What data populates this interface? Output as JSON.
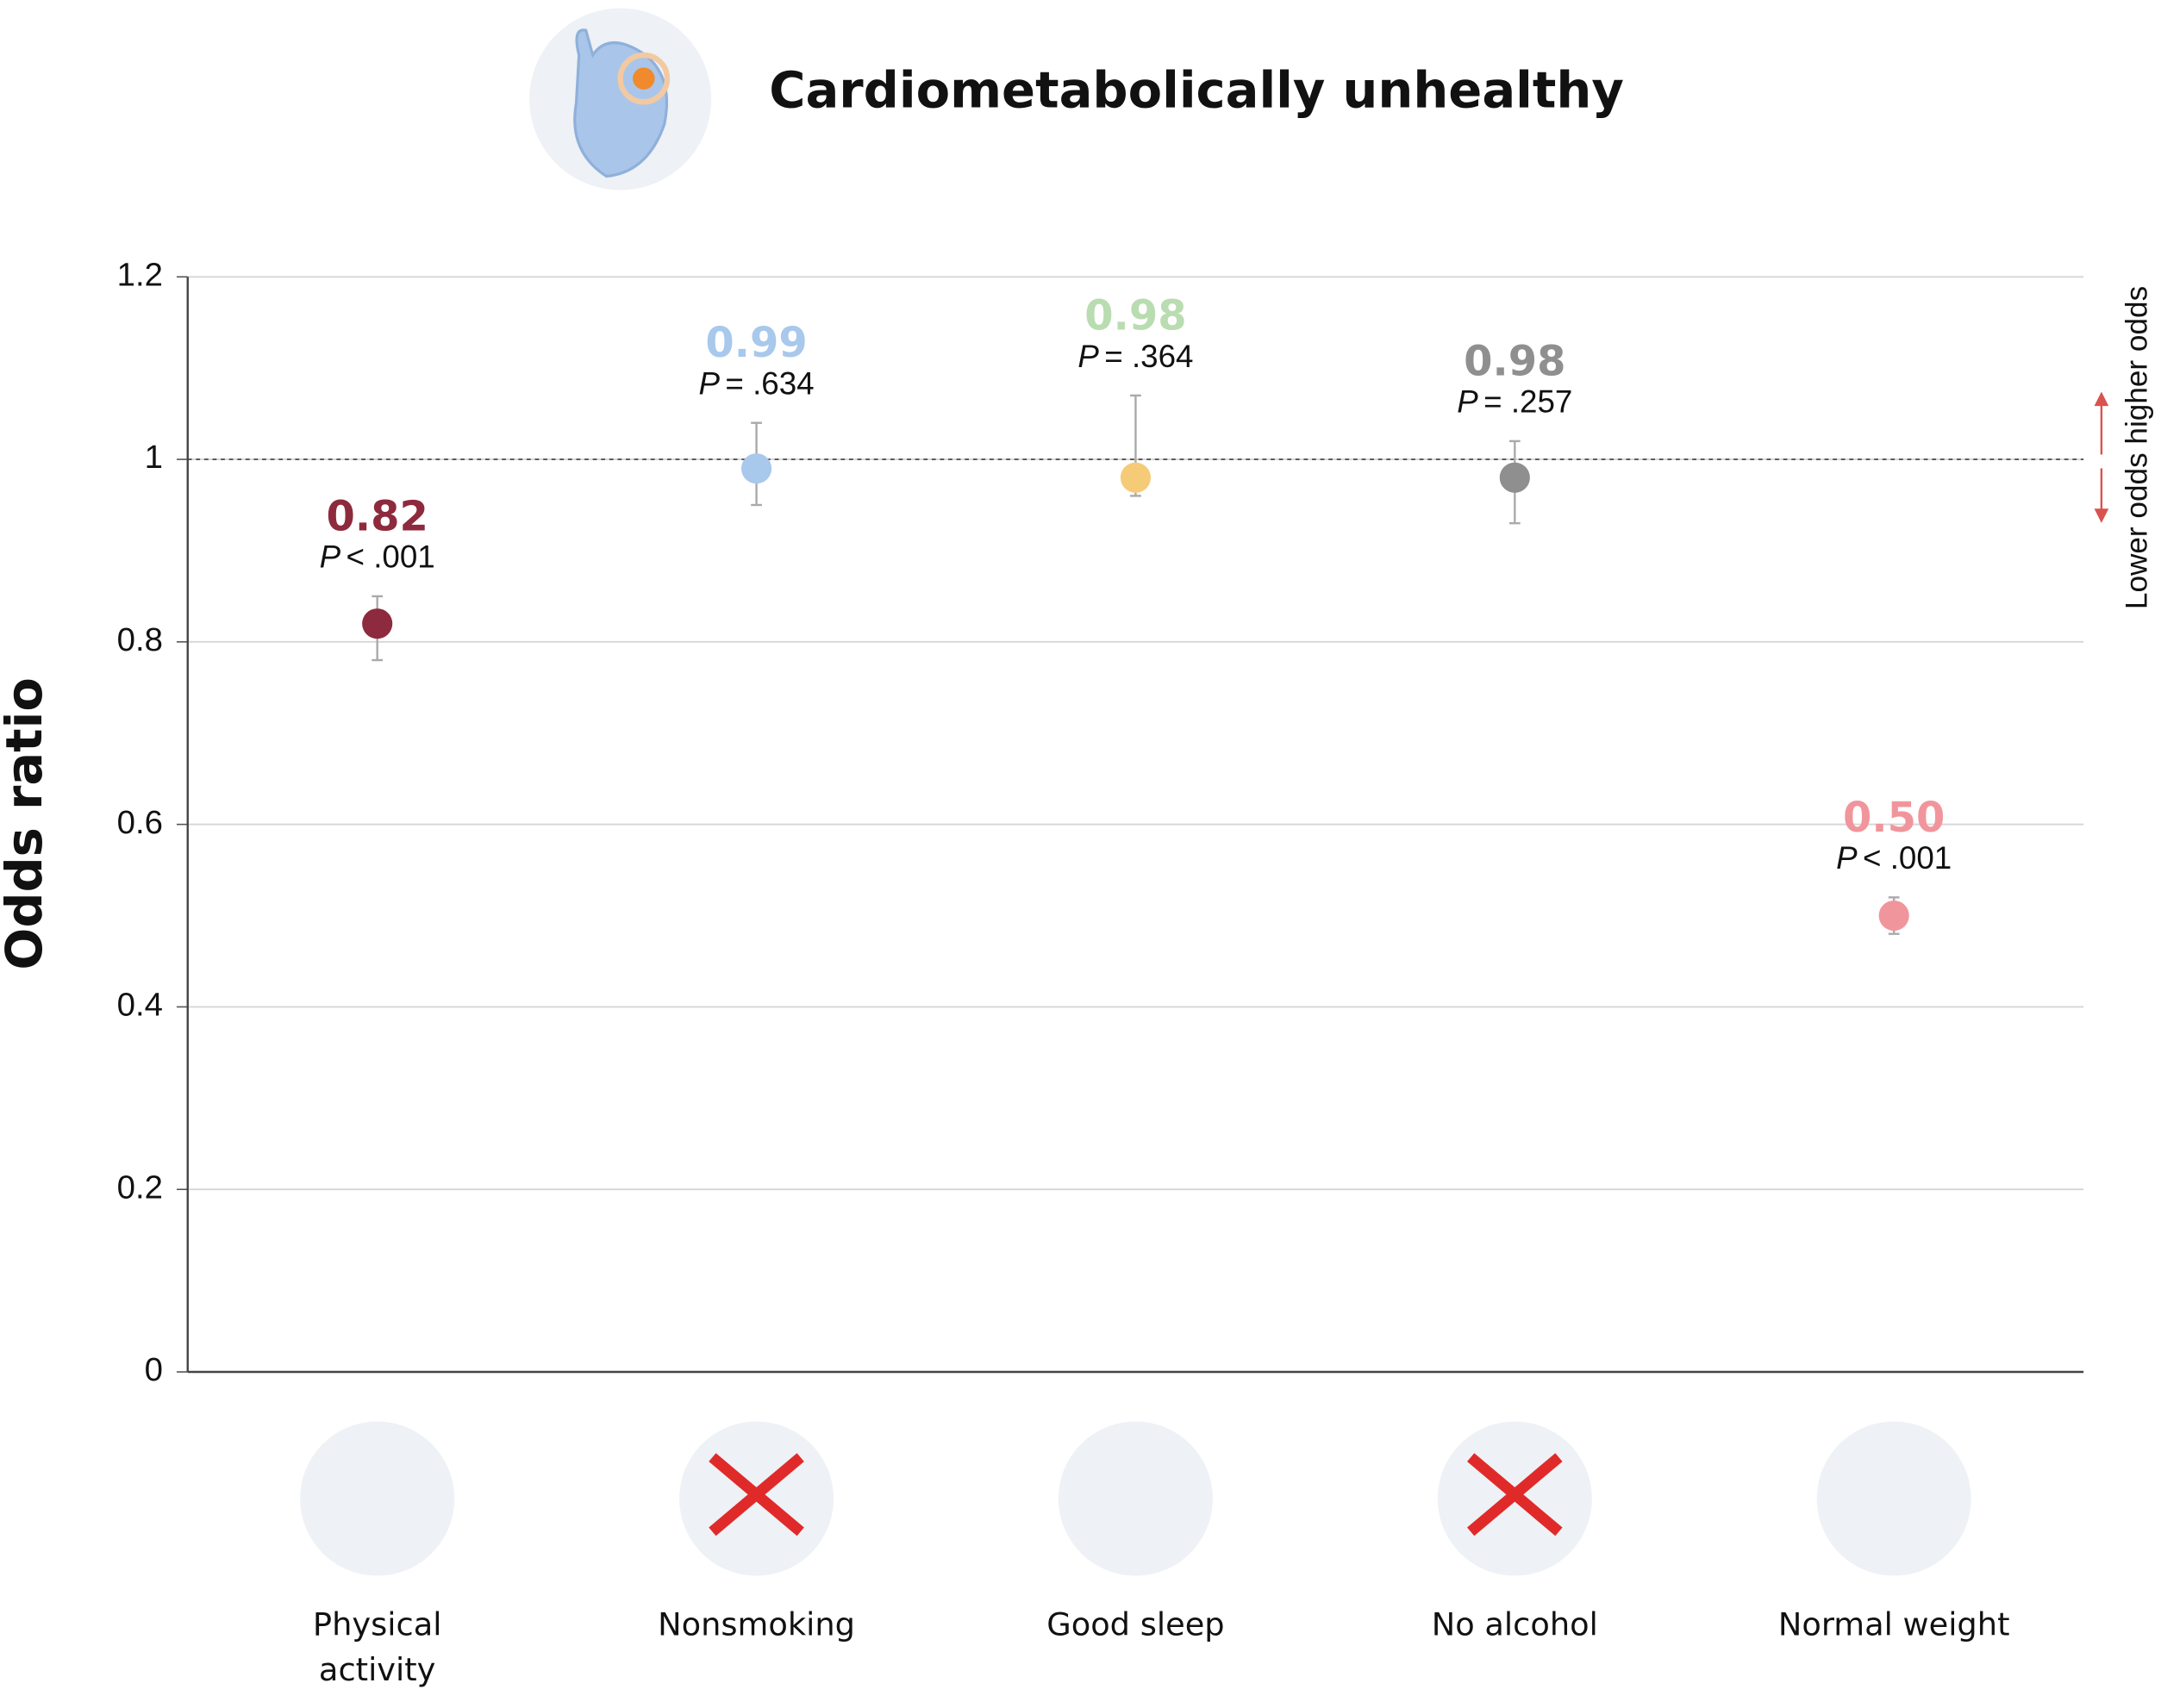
{
  "chart_data": {
    "type": "errorbar",
    "title": "Cardiometabolically unhealthy",
    "y_label": "Odds ratio",
    "side_annotation": "Lower odds higher odds",
    "categories": [
      "Physical activity",
      "Nonsmoking",
      "Good sleep",
      "No alcohol",
      "Normal weight"
    ],
    "values": [
      0.82,
      0.99,
      0.98,
      0.98,
      0.5
    ],
    "value_labels": [
      "0.82",
      "0.99",
      "0.98",
      "0.98",
      "0.50"
    ],
    "lower": [
      0.78,
      0.95,
      0.96,
      0.93,
      0.48
    ],
    "upper": [
      0.85,
      1.04,
      1.07,
      1.02,
      0.52
    ],
    "colors": [
      "#8e2a3d",
      "#a8c8ec",
      "#f6cb78",
      "#8f8f8f",
      "#f1959c"
    ],
    "label_colors": [
      "#8e2a3d",
      "#a8c8ec",
      "#b9dcb1",
      "#8f8f8f",
      "#f1959c"
    ],
    "p_symbol": "P",
    "p_values": [
      "< .001",
      "= .634",
      "= .364",
      "= .257",
      "< .001"
    ],
    "reference_line": 1,
    "ylim": [
      0,
      1.2
    ],
    "yticks": [
      0,
      0.2,
      0.4,
      0.6,
      0.8,
      1,
      1.2
    ],
    "grid": true
  }
}
